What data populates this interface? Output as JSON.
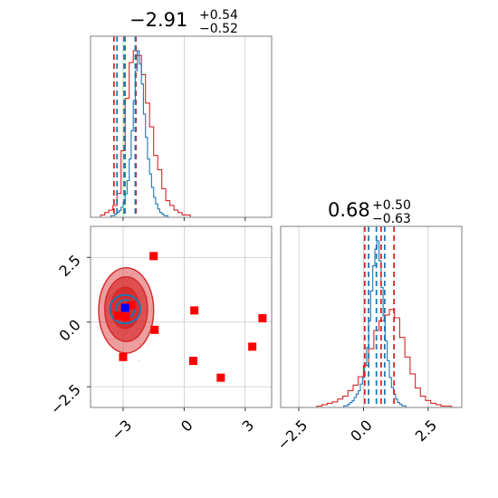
{
  "colors": {
    "red": "#d62728",
    "blue": "#1f77b4",
    "pink": "#ff9ebb",
    "marker": "#ff0000",
    "truth": "#0000ff"
  },
  "chart_data": {
    "type": "corner",
    "parameters": [
      {
        "title": {
          "median": "−2.91",
          "plus": "+0.54",
          "minus": "−0.52"
        },
        "median": -2.91,
        "plus": 0.54,
        "minus": 0.52,
        "xlim": [
          -4.6,
          4.3
        ],
        "ticks": [
          -3,
          0,
          3
        ],
        "tick_labels": [
          "−3",
          "0",
          "3"
        ],
        "hist_red": {
          "edges_start": -4.3,
          "bin_width": 0.2,
          "counts": [
            0,
            1,
            2,
            3,
            5,
            10,
            28,
            50,
            65,
            70,
            68,
            60,
            48,
            38,
            26,
            20,
            12,
            7,
            5,
            3,
            2,
            1,
            1,
            0,
            0,
            0,
            0,
            0,
            0,
            0,
            0,
            0,
            0,
            0,
            0,
            0,
            0,
            0,
            0,
            0,
            0,
            0,
            0,
            0,
            1,
            1,
            1,
            1,
            0
          ]
        },
        "hist_blue": {
          "edges_start": -4.3,
          "bin_width": 0.1,
          "counts": [
            0,
            0,
            0,
            0,
            0,
            0,
            0,
            1,
            1,
            2,
            3,
            4,
            6,
            9,
            14,
            22,
            35,
            52,
            70,
            88,
            100,
            92,
            80,
            62,
            48,
            35,
            26,
            18,
            12,
            8,
            5,
            3,
            2,
            1,
            1,
            0,
            0,
            0,
            0,
            0
          ]
        },
        "red_quantiles": [
          -3.45,
          -2.91,
          -2.37
        ],
        "blue_quantiles": [
          -3.3,
          -2.95,
          -2.4
        ]
      },
      {
        "title": {
          "median": "0.68",
          "plus": "+0.50",
          "minus": "−0.63"
        },
        "median": 0.68,
        "plus": 0.5,
        "minus": 0.63,
        "xlim": [
          -3.2,
          3.8
        ],
        "ticks": [
          -2.5,
          0.0,
          2.5
        ],
        "tick_labels": [
          "−2.5",
          "0.0",
          "2.5"
        ],
        "hist_red": {
          "edges_start": -3.0,
          "bin_width": 0.2,
          "counts": [
            0,
            0,
            0,
            0,
            0,
            0,
            1,
            2,
            3,
            4,
            6,
            8,
            12,
            16,
            22,
            30,
            42,
            55,
            62,
            66,
            70,
            64,
            50,
            36,
            24,
            14,
            8,
            5,
            3,
            2,
            1,
            1,
            0,
            0,
            0
          ]
        },
        "hist_blue": {
          "edges_start": -1.0,
          "bin_width": 0.08,
          "counts": [
            0,
            0,
            0,
            1,
            1,
            2,
            3,
            4,
            6,
            8,
            10,
            14,
            18,
            26,
            36,
            52,
            70,
            85,
            95,
            100,
            88,
            72,
            55,
            40,
            28,
            18,
            12,
            8,
            5,
            3,
            2,
            1,
            1,
            0,
            0
          ]
        },
        "red_quantiles": [
          0.05,
          0.68,
          1.18
        ],
        "blue_quantiles": [
          0.2,
          0.5,
          0.82
        ]
      }
    ],
    "joint": {
      "xlim": [
        -4.6,
        4.3
      ],
      "ylim": [
        -3.3,
        3.7
      ],
      "xticks": [
        -3,
        0,
        3
      ],
      "xtick_labels": [
        "−3",
        "0",
        "3"
      ],
      "yticks": [
        -2.5,
        0.0,
        2.5
      ],
      "ytick_labels": [
        "−2.5",
        "0.0",
        "2.5"
      ],
      "red_contours": [
        {
          "cx": -2.85,
          "cy": 0.45,
          "rx": 1.35,
          "ry": 1.65
        },
        {
          "cx": -2.85,
          "cy": 0.5,
          "rx": 1.05,
          "ry": 1.25
        },
        {
          "cx": -2.9,
          "cy": 0.55,
          "rx": 0.7,
          "ry": 0.8
        }
      ],
      "blue_contours": [
        {
          "cx": -2.9,
          "cy": 0.5,
          "rx": 0.75,
          "ry": 0.55
        },
        {
          "cx": -2.9,
          "cy": 0.5,
          "rx": 0.45,
          "ry": 0.35
        }
      ],
      "markers": [
        {
          "x": -1.5,
          "y": 2.55
        },
        {
          "x": -1.45,
          "y": -0.3
        },
        {
          "x": 0.5,
          "y": 0.45
        },
        {
          "x": 3.85,
          "y": 0.15
        },
        {
          "x": 3.35,
          "y": -0.95
        },
        {
          "x": 0.45,
          "y": -1.5
        },
        {
          "x": 1.8,
          "y": -2.15
        },
        {
          "x": -3.0,
          "y": -1.35
        },
        {
          "x": -3.25,
          "y": 0.25
        },
        {
          "x": -2.6,
          "y": 0.65
        },
        {
          "x": -2.85,
          "y": 0.2
        }
      ],
      "truth": {
        "x": -2.9,
        "y": 0.55
      }
    }
  }
}
